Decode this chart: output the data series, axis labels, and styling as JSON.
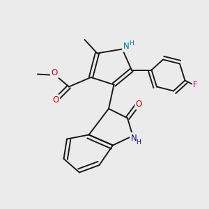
{
  "bg_color": "#ebebeb",
  "bond_color": "#1a1a1a",
  "bond_width": 1.4,
  "atom_colors": {
    "N": "#0000cc",
    "NH": "#008080",
    "O": "#dd0000",
    "F": "#cc00aa",
    "C": "#1a1a1a"
  },
  "font_size": 8.5
}
